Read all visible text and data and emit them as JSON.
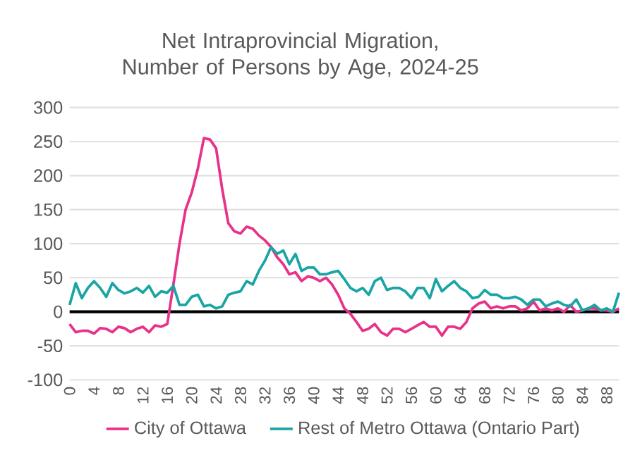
{
  "chart_data": {
    "type": "line",
    "title": "Net Intraprovincial Migration, Number of Persons by Age, 2024-25",
    "categories": [
      "0",
      null,
      null,
      null,
      "4",
      null,
      null,
      null,
      "8",
      null,
      null,
      null,
      "12",
      null,
      null,
      null,
      "16",
      null,
      null,
      null,
      "20",
      null,
      null,
      null,
      "24",
      null,
      null,
      null,
      "28",
      null,
      null,
      null,
      "32",
      null,
      null,
      null,
      "36",
      null,
      null,
      null,
      "40",
      null,
      null,
      null,
      "44",
      null,
      null,
      null,
      "48",
      null,
      null,
      null,
      "52",
      null,
      null,
      null,
      "56",
      null,
      null,
      null,
      "60",
      null,
      null,
      null,
      "64",
      null,
      null,
      null,
      "68",
      null,
      null,
      null,
      "72",
      null,
      null,
      null,
      "76",
      null,
      null,
      null,
      "80",
      null,
      null,
      null,
      "84",
      null,
      null,
      null,
      "88",
      null,
      null
    ],
    "series": [
      {
        "name": "City of Ottawa",
        "color": "#e8328a",
        "values": [
          -18,
          -30,
          -28,
          -28,
          -32,
          -24,
          -25,
          -30,
          -22,
          -24,
          -30,
          -25,
          -22,
          -30,
          -20,
          -22,
          -18,
          40,
          100,
          150,
          175,
          210,
          255,
          253,
          240,
          180,
          130,
          118,
          115,
          125,
          122,
          112,
          105,
          95,
          80,
          70,
          55,
          58,
          45,
          52,
          50,
          45,
          50,
          40,
          25,
          5,
          -3,
          -15,
          -28,
          -25,
          -18,
          -30,
          -35,
          -25,
          -25,
          -30,
          -25,
          -20,
          -15,
          -22,
          -22,
          -35,
          -22,
          -22,
          -25,
          -15,
          5,
          12,
          15,
          5,
          8,
          5,
          8,
          8,
          2,
          5,
          15,
          2,
          5,
          2,
          5,
          0,
          10,
          0,
          2,
          5,
          5,
          2,
          2,
          0,
          5
        ]
      },
      {
        "name": "Rest of Metro Ottawa (Ontario Part)",
        "color": "#1aa5a5",
        "values": [
          10,
          42,
          20,
          35,
          45,
          35,
          22,
          42,
          32,
          27,
          30,
          35,
          28,
          38,
          22,
          30,
          28,
          38,
          10,
          10,
          22,
          25,
          8,
          10,
          5,
          8,
          25,
          28,
          30,
          45,
          40,
          60,
          75,
          95,
          85,
          90,
          70,
          85,
          60,
          65,
          65,
          55,
          55,
          58,
          60,
          48,
          35,
          30,
          35,
          25,
          45,
          50,
          32,
          35,
          35,
          30,
          20,
          35,
          35,
          20,
          48,
          30,
          38,
          45,
          35,
          30,
          20,
          22,
          32,
          25,
          25,
          20,
          20,
          22,
          18,
          10,
          18,
          18,
          8,
          12,
          15,
          10,
          8,
          18,
          2,
          5,
          10,
          2,
          5,
          0,
          28
        ]
      }
    ],
    "ylim": [
      -100,
      300
    ],
    "yticks": [
      -100,
      -50,
      0,
      50,
      100,
      150,
      200,
      250,
      300
    ],
    "grid": "y",
    "legend": "bottom",
    "ref_lines": [
      {
        "axis": "y",
        "value": 0,
        "color": "#000000"
      }
    ]
  }
}
